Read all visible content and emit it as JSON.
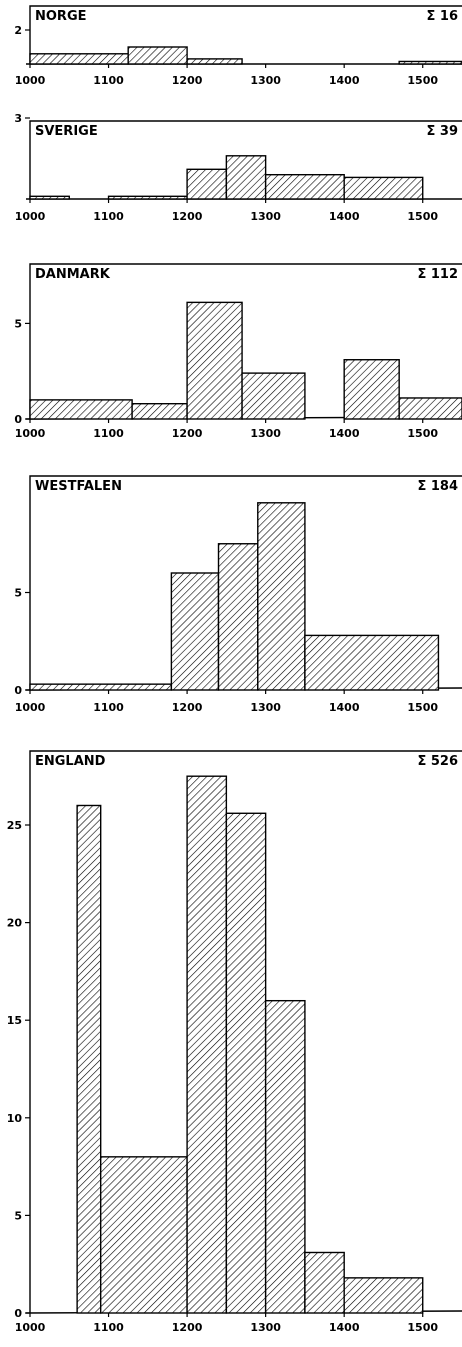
{
  "chart_data": [
    {
      "type": "bar",
      "title": "NORGE",
      "total_label": "Σ 16",
      "xlim": [
        1000,
        1550
      ],
      "ylim": [
        0,
        3
      ],
      "yticks": [
        2
      ],
      "xticks": [
        1000,
        1100,
        1200,
        1300,
        1400,
        1500
      ],
      "bins": [
        {
          "x0": 1000,
          "x1": 1125,
          "value": 0.6
        },
        {
          "x0": 1125,
          "x1": 1200,
          "value": 1.0
        },
        {
          "x0": 1200,
          "x1": 1270,
          "value": 0.3
        },
        {
          "x0": 1470,
          "x1": 1550,
          "value": 0.15
        }
      ]
    },
    {
      "type": "bar",
      "title": "SVERIGE",
      "total_label": "Σ 39",
      "xlim": [
        1000,
        1550
      ],
      "ylim": [
        0,
        4
      ],
      "yticks": [
        3
      ],
      "xticks": [
        1000,
        1100,
        1200,
        1300,
        1400,
        1500
      ],
      "bins": [
        {
          "x0": 1000,
          "x1": 1050,
          "value": 0.1
        },
        {
          "x0": 1100,
          "x1": 1200,
          "value": 0.1
        },
        {
          "x0": 1200,
          "x1": 1250,
          "value": 1.1
        },
        {
          "x0": 1250,
          "x1": 1300,
          "value": 1.6
        },
        {
          "x0": 1300,
          "x1": 1400,
          "value": 0.9
        },
        {
          "x0": 1400,
          "x1": 1500,
          "value": 0.8
        }
      ]
    },
    {
      "type": "bar",
      "title": "DANMARK",
      "total_label": "Σ 112",
      "xlim": [
        1000,
        1550
      ],
      "ylim": [
        0,
        7
      ],
      "yticks": [
        0,
        5
      ],
      "xticks": [
        1000,
        1100,
        1200,
        1300,
        1400,
        1500
      ],
      "bins": [
        {
          "x0": 1000,
          "x1": 1130,
          "value": 1.0
        },
        {
          "x0": 1130,
          "x1": 1200,
          "value": 0.8
        },
        {
          "x0": 1200,
          "x1": 1270,
          "value": 6.1
        },
        {
          "x0": 1270,
          "x1": 1350,
          "value": 2.4
        },
        {
          "x0": 1400,
          "x1": 1470,
          "value": 3.1
        },
        {
          "x0": 1470,
          "x1": 1550,
          "value": 1.1
        }
      ]
    },
    {
      "type": "bar",
      "title": "WESTFALEN",
      "total_label": "Σ 184",
      "xlim": [
        1000,
        1550
      ],
      "ylim": [
        0,
        10
      ],
      "yticks": [
        0,
        5
      ],
      "xticks": [
        1000,
        1100,
        1200,
        1300,
        1400,
        1500
      ],
      "bins": [
        {
          "x0": 1000,
          "x1": 1180,
          "value": 0.3
        },
        {
          "x0": 1180,
          "x1": 1240,
          "value": 6.0
        },
        {
          "x0": 1240,
          "x1": 1290,
          "value": 7.5
        },
        {
          "x0": 1290,
          "x1": 1350,
          "value": 9.6
        },
        {
          "x0": 1350,
          "x1": 1520,
          "value": 2.8
        }
      ]
    },
    {
      "type": "bar",
      "title": "ENGLAND",
      "total_label": "Σ 526",
      "xlim": [
        1000,
        1550
      ],
      "ylim": [
        0,
        28
      ],
      "yticks": [
        0,
        5,
        10,
        15,
        20,
        25
      ],
      "xticks": [
        1000,
        1100,
        1200,
        1300,
        1400,
        1500
      ],
      "bins": [
        {
          "x0": 1060,
          "x1": 1090,
          "value": 26.0
        },
        {
          "x0": 1090,
          "x1": 1200,
          "value": 8.0
        },
        {
          "x0": 1200,
          "x1": 1250,
          "value": 27.5
        },
        {
          "x0": 1250,
          "x1": 1300,
          "value": 25.6
        },
        {
          "x0": 1300,
          "x1": 1350,
          "value": 16.0
        },
        {
          "x0": 1350,
          "x1": 1400,
          "value": 3.1
        },
        {
          "x0": 1400,
          "x1": 1500,
          "value": 1.8
        }
      ]
    }
  ]
}
